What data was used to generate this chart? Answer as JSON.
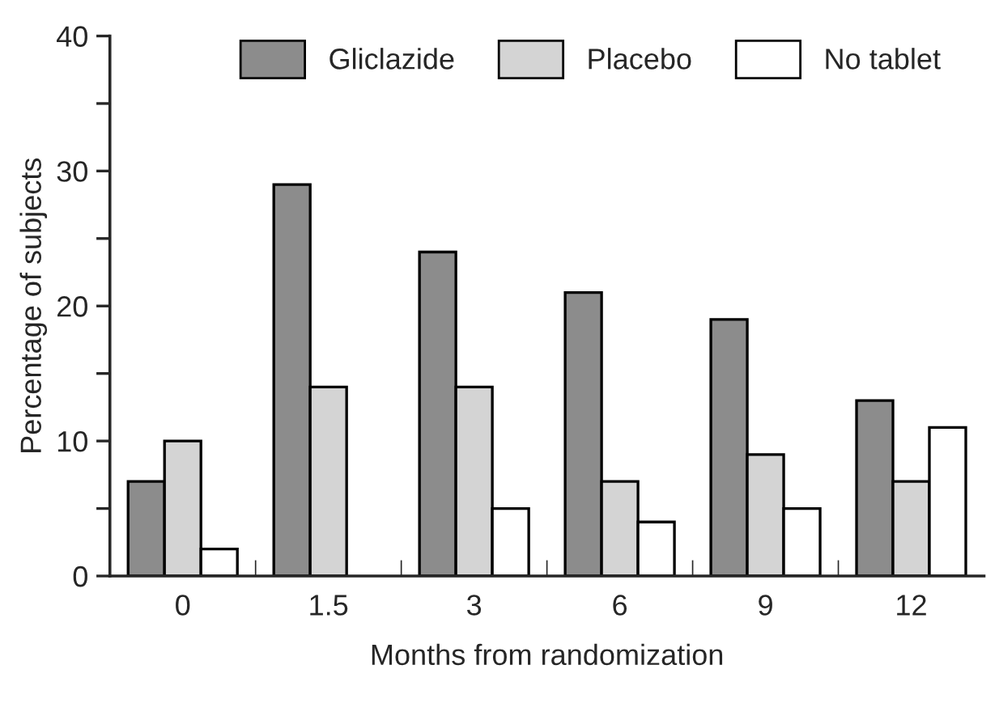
{
  "chart_data": {
    "type": "bar",
    "xlabel": "Months from randomization",
    "ylabel": "Percentage of subjects",
    "categories": [
      "0",
      "1.5",
      "3",
      "6",
      "9",
      "12"
    ],
    "series": [
      {
        "name": "Gliclazide",
        "color": "#8c8c8c",
        "values": [
          7,
          29,
          24,
          21,
          19,
          13
        ]
      },
      {
        "name": "Placebo",
        "color": "#d4d4d4",
        "values": [
          10,
          14,
          14,
          7,
          9,
          7
        ]
      },
      {
        "name": "No tablet",
        "color": "#ffffff",
        "values": [
          2,
          null,
          5,
          4,
          5,
          11
        ]
      }
    ],
    "ylim": [
      0,
      40
    ],
    "yticks": [
      0,
      {
        "value": 5,
        "label": null
      },
      10,
      {
        "value": 15,
        "label": null
      },
      20,
      {
        "value": 25,
        "label": null
      },
      30,
      {
        "value": 35,
        "label": null
      },
      40
    ],
    "grid": false,
    "legend": "top"
  }
}
